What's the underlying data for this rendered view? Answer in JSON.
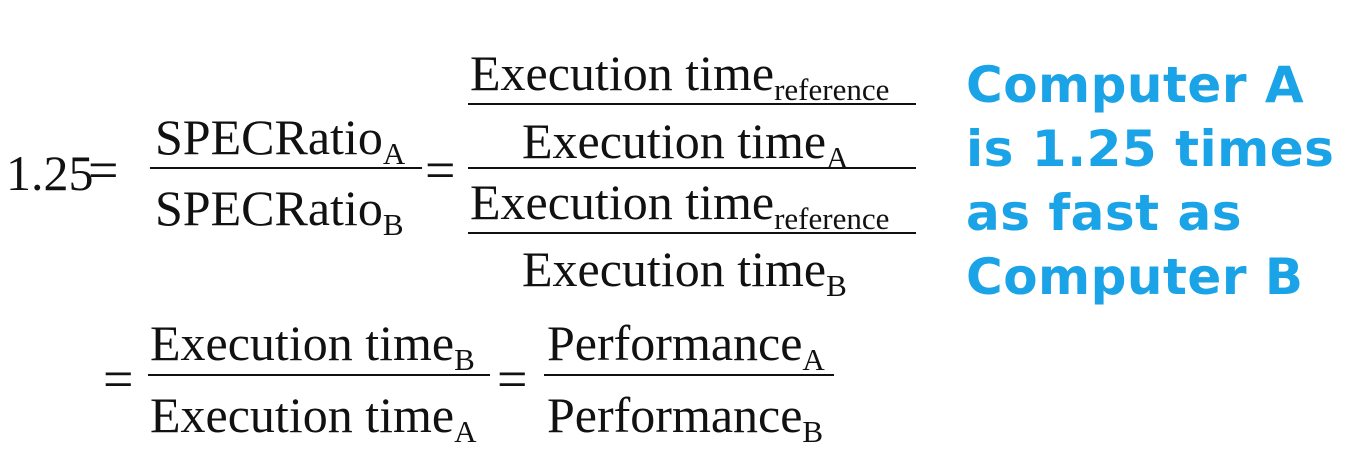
{
  "equation": {
    "lhs_value": "1.25",
    "equals": "=",
    "spec_ratio": {
      "text": "SPECRatio",
      "sub_a": "A",
      "sub_b": "B"
    },
    "execution_time": {
      "text": "Execution time",
      "sub_reference": "reference",
      "sub_a": "A",
      "sub_b": "B"
    },
    "performance": {
      "text": "Performance",
      "sub_a": "A",
      "sub_b": "B"
    }
  },
  "note": {
    "line1": "Computer A",
    "line2": "is 1.25 times",
    "line3": "as fast as",
    "line4": "Computer B",
    "color": "#1aa3e6"
  }
}
